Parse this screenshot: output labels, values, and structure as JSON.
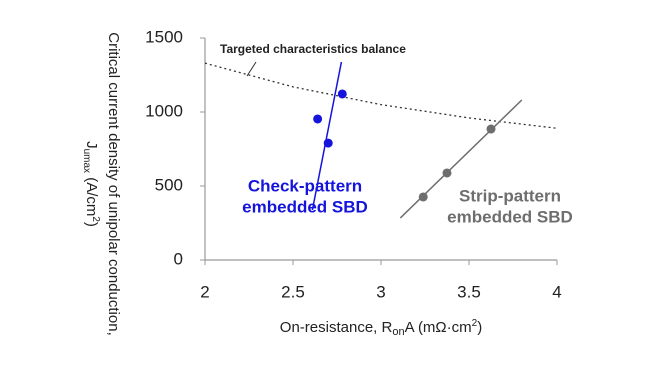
{
  "chart_data": {
    "type": "scatter",
    "xlim": [
      2,
      4
    ],
    "ylim": [
      0,
      1500
    ],
    "xticks": [
      2,
      2.5,
      3,
      3.5,
      4
    ],
    "yticks": [
      0,
      500,
      1000,
      1500
    ],
    "x_label": [
      "On-resistance, R",
      "on",
      "A (mΩ·cm",
      "2",
      ")"
    ],
    "y_label": {
      "line1": "Critical current density of unipolar conduction,",
      "line2": [
        "J",
        "umax",
        " (A/cm",
        "2",
        ")"
      ]
    },
    "reference_curve": {
      "label": "Targeted characteristics balance",
      "color": "#333333",
      "x": [
        2,
        2.5,
        3,
        3.5,
        4
      ],
      "y": [
        1330,
        1170,
        1050,
        960,
        890
      ]
    },
    "series": [
      {
        "label_lines": [
          "Check-pattern",
          "embedded SBD"
        ],
        "color": "#1414dc",
        "x": [
          2.64,
          2.7,
          2.78
        ],
        "values": [
          953,
          790,
          1122
        ],
        "trend": {
          "x": [
            2.61,
            2.775
          ],
          "y": [
            338,
            1338
          ]
        }
      },
      {
        "label_lines": [
          "Strip-pattern",
          "embedded SBD"
        ],
        "color": "#6e6e6e",
        "x": [
          3.24,
          3.375,
          3.625
        ],
        "values": [
          426,
          588,
          885
        ],
        "trend": {
          "x": [
            3.11,
            3.8
          ],
          "y": [
            284,
            1081
          ]
        }
      }
    ]
  }
}
